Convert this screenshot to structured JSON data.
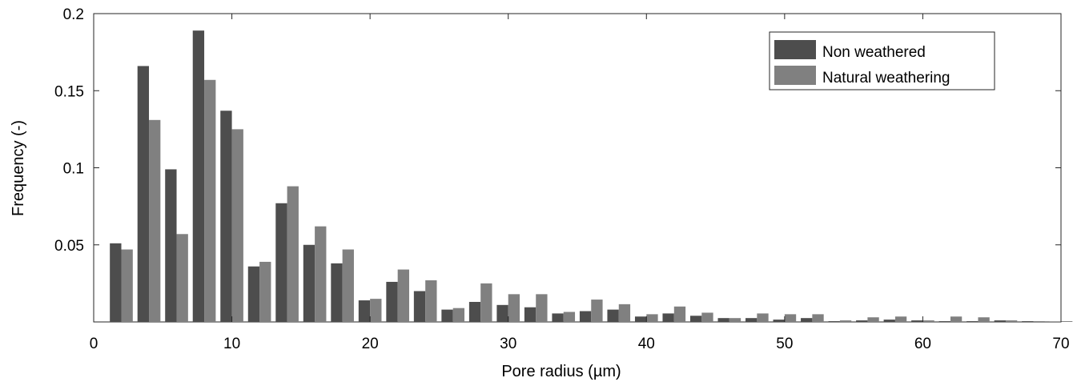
{
  "chart_data": {
    "type": "bar",
    "xlabel": "Pore radius (µm)",
    "ylabel": "Frequency (-)",
    "xlim": [
      0,
      70
    ],
    "ylim": [
      0,
      0.2
    ],
    "x_ticks": [
      0,
      10,
      20,
      30,
      40,
      50,
      60,
      70
    ],
    "x_tick_labels": [
      "0",
      "10",
      "20",
      "30",
      "40",
      "50",
      "60",
      "70"
    ],
    "y_ticks": [
      0.05,
      0.1,
      0.15,
      0.2
    ],
    "y_tick_labels": [
      "0.05",
      "0.1",
      "0.15",
      "0.2"
    ],
    "grid": false,
    "legend_position": "top-right",
    "bin_width": 2,
    "x": [
      2,
      4,
      6,
      8,
      10,
      12,
      14,
      16,
      18,
      20,
      22,
      24,
      26,
      28,
      30,
      32,
      34,
      36,
      38,
      40,
      42,
      44,
      46,
      48,
      50,
      52,
      54,
      56,
      58,
      60,
      62,
      64,
      66,
      68,
      70
    ],
    "series": [
      {
        "name": "Non weathered",
        "color": "#4d4d4d",
        "values": [
          0.051,
          0.166,
          0.099,
          0.189,
          0.137,
          0.036,
          0.077,
          0.05,
          0.038,
          0.014,
          0.026,
          0.02,
          0.008,
          0.013,
          0.011,
          0.0095,
          0.0055,
          0.007,
          0.008,
          0.0035,
          0.0055,
          0.004,
          0.0025,
          0.0025,
          0.0015,
          0.0025,
          0.0005,
          0.001,
          0.0015,
          0.001,
          0.0005,
          0.0005,
          0.001,
          0.0005,
          0.0002
        ]
      },
      {
        "name": "Natural weathering",
        "color": "#808080",
        "values": [
          0.047,
          0.131,
          0.057,
          0.157,
          0.125,
          0.039,
          0.088,
          0.062,
          0.047,
          0.015,
          0.034,
          0.027,
          0.009,
          0.025,
          0.018,
          0.018,
          0.0065,
          0.0145,
          0.0115,
          0.005,
          0.01,
          0.006,
          0.0025,
          0.0055,
          0.005,
          0.005,
          0.001,
          0.003,
          0.0035,
          0.001,
          0.0035,
          0.003,
          0.001,
          0.0005,
          0.0005
        ]
      }
    ]
  }
}
